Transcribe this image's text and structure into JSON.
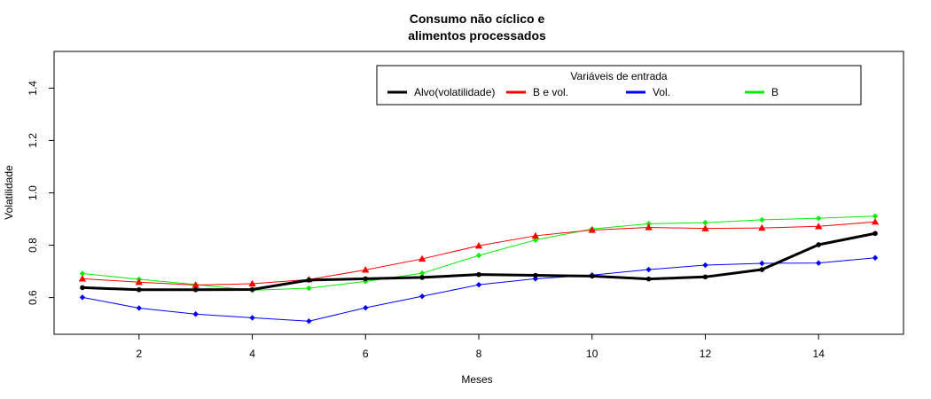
{
  "chart_data": {
    "type": "line",
    "title_line1": "Consumo não cíclico e",
    "title_line2": "alimentos processados",
    "xlabel": "Meses",
    "ylabel": "Volatilidade",
    "xlim": [
      0.5,
      15.5
    ],
    "ylim": [
      0.46,
      1.54
    ],
    "xticks": [
      "2",
      "4",
      "6",
      "8",
      "10",
      "12",
      "14"
    ],
    "yticks": [
      "0.6",
      "0.8",
      "1.0",
      "1.2",
      "1.4"
    ],
    "grid": false,
    "legend": {
      "title": "Variáveis de entrada",
      "placement": "top-right",
      "entries": [
        "Alvo(volatilidade)",
        "B e vol.",
        "Vol.",
        "B"
      ]
    },
    "x": [
      1,
      2,
      3,
      4,
      5,
      6,
      7,
      8,
      9,
      10,
      11,
      12,
      13,
      14,
      15
    ],
    "series": [
      {
        "name": "Alvo(volatilidade)",
        "color": "#000000",
        "marker": "circle",
        "width": 3,
        "values": [
          0.638,
          0.63,
          0.63,
          0.631,
          0.667,
          0.672,
          0.677,
          0.688,
          0.685,
          0.682,
          0.671,
          0.679,
          0.707,
          0.802,
          0.845
        ]
      },
      {
        "name": "B e vol.",
        "color": "#ff0000",
        "marker": "triangle",
        "width": 1,
        "values": [
          0.672,
          0.659,
          0.648,
          0.653,
          0.669,
          0.706,
          0.748,
          0.798,
          0.836,
          0.858,
          0.868,
          0.864,
          0.866,
          0.872,
          0.889
        ]
      },
      {
        "name": "Vol.",
        "color": "#0000ff",
        "marker": "diamond",
        "width": 1,
        "values": [
          0.601,
          0.56,
          0.537,
          0.523,
          0.51,
          0.561,
          0.605,
          0.649,
          0.672,
          0.686,
          0.707,
          0.724,
          0.731,
          0.732,
          0.752
        ]
      },
      {
        "name": "B",
        "color": "#00ee00",
        "marker": "diamond",
        "width": 1,
        "values": [
          0.692,
          0.67,
          0.65,
          0.628,
          0.636,
          0.662,
          0.693,
          0.761,
          0.82,
          0.862,
          0.882,
          0.886,
          0.897,
          0.903,
          0.911
        ]
      }
    ]
  }
}
